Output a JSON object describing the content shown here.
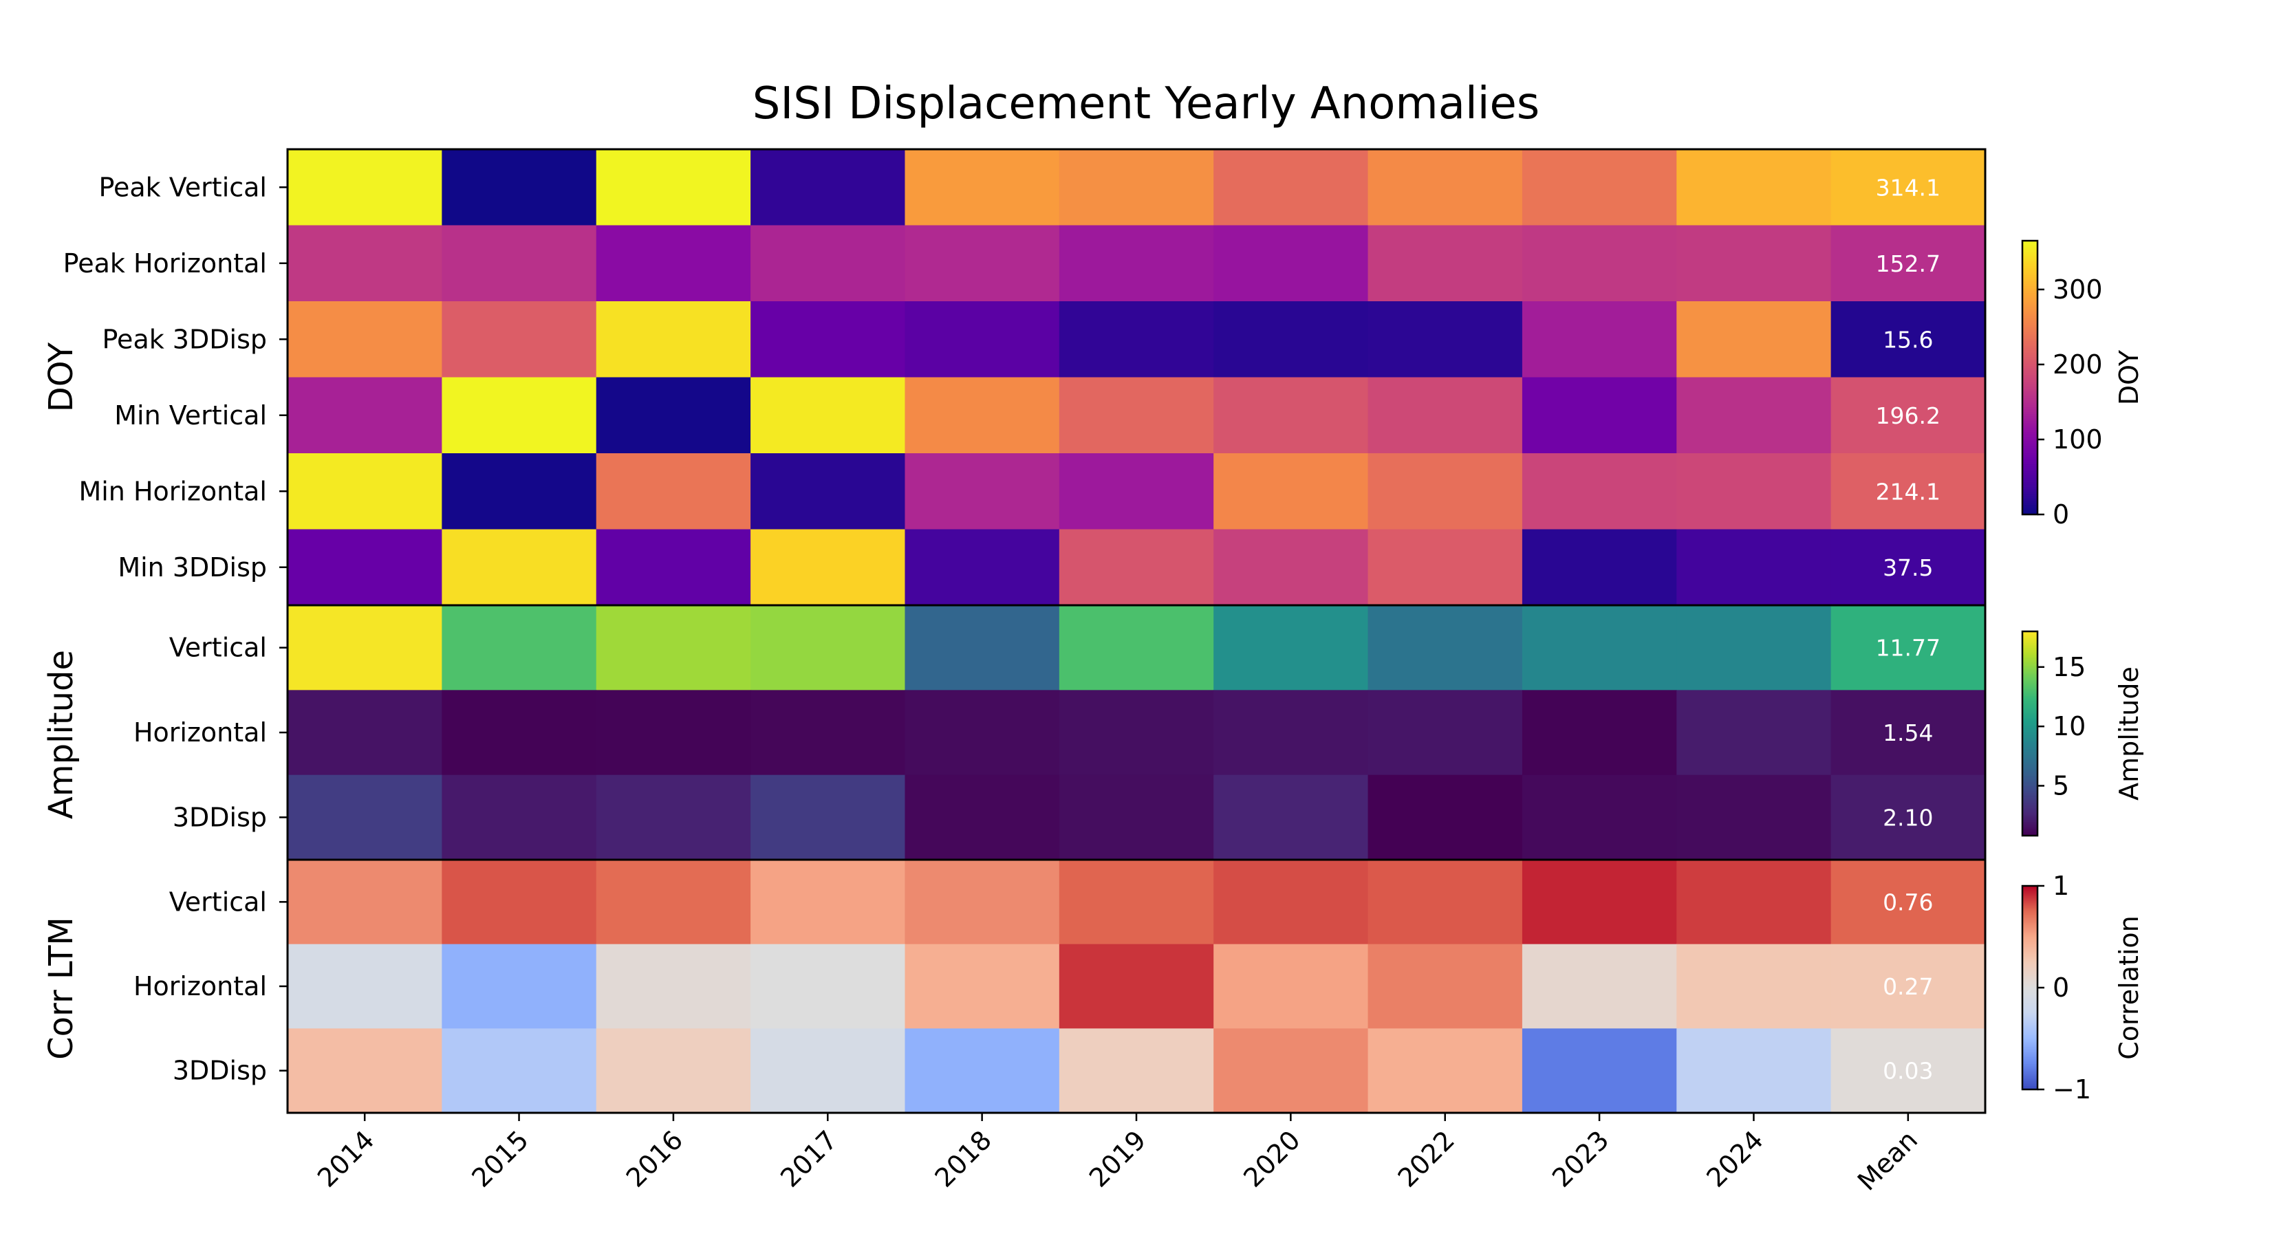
{
  "chart_data": {
    "type": "heatmap",
    "title": "SISI Displacement Yearly Anomalies",
    "columns": [
      "2014",
      "2015",
      "2016",
      "2017",
      "2018",
      "2019",
      "2020",
      "2022",
      "2023",
      "2024",
      "Mean"
    ],
    "groups": [
      {
        "name": "DOY",
        "colormap": "plasma",
        "vmin": 0,
        "vmax": 365,
        "colorbar_label": "DOY",
        "colorbar_ticks": [
          "0",
          "100",
          "200",
          "300"
        ],
        "rows": [
          {
            "label": "Peak Vertical",
            "values": [
              360,
              2,
              362,
              25,
              280,
              268,
              228,
              262,
              238,
              305,
              314.1
            ],
            "mean_label": "314.1"
          },
          {
            "label": "Peak Horizontal",
            "values": [
              165,
              155,
              105,
              140,
              145,
              125,
              118,
              170,
              165,
              168,
              152.7
            ],
            "mean_label": "152.7"
          },
          {
            "label": "Peak 3DDisp",
            "values": [
              265,
              210,
              345,
              70,
              60,
              25,
              20,
              22,
              130,
              270,
              15.6
            ],
            "mean_label": "15.6"
          },
          {
            "label": "Min Vertical",
            "values": [
              135,
              362,
              5,
              352,
              262,
              222,
              200,
              185,
              80,
              155,
              196.2
            ],
            "mean_label": "196.2"
          },
          {
            "label": "Min Horizontal",
            "values": [
              352,
              5,
              238,
              20,
              142,
              125,
              258,
              232,
              180,
              182,
              214.1
            ],
            "mean_label": "214.1"
          },
          {
            "label": "Min 3DDisp",
            "values": [
              70,
              342,
              65,
              332,
              40,
              200,
              175,
              208,
              20,
              38,
              37.5
            ],
            "mean_label": "37.5"
          }
        ]
      },
      {
        "name": "Amplitude",
        "colormap": "viridis",
        "vmin": 0.8,
        "vmax": 18,
        "colorbar_label": "Amplitude",
        "colorbar_ticks": [
          "5",
          "10",
          "15"
        ],
        "rows": [
          {
            "label": "Vertical",
            "values": [
              17.8,
              13.1,
              15.5,
              15.2,
              6.4,
              13.0,
              9.4,
              7.4,
              8.7,
              8.7,
              11.77
            ],
            "mean_label": "11.77"
          },
          {
            "label": "Horizontal",
            "values": [
              1.7,
              0.9,
              0.95,
              1.05,
              1.3,
              1.5,
              1.7,
              1.8,
              0.9,
              2.1,
              1.54
            ],
            "mean_label": "1.54"
          },
          {
            "label": "3DDisp",
            "values": [
              3.9,
              2.0,
              2.4,
              3.8,
              1.1,
              1.4,
              2.5,
              0.8,
              1.2,
              1.3,
              2.1
            ],
            "mean_label": "2.10"
          }
        ]
      },
      {
        "name": "Corr LTM",
        "colormap": "coolwarm",
        "vmin": -1,
        "vmax": 1,
        "colorbar_label": "Correlation",
        "colorbar_ticks": [
          "−1",
          "0",
          "1"
        ],
        "rows": [
          {
            "label": "Vertical",
            "values": [
              0.62,
              0.8,
              0.74,
              0.52,
              0.62,
              0.76,
              0.82,
              0.79,
              0.92,
              0.86,
              0.76
            ],
            "mean_label": "0.76"
          },
          {
            "label": "Horizontal",
            "values": [
              -0.1,
              -0.55,
              0.05,
              0.0,
              0.45,
              0.88,
              0.52,
              0.66,
              0.1,
              0.27,
              0.27
            ],
            "mean_label": "0.27"
          },
          {
            "label": "3DDisp",
            "values": [
              0.35,
              -0.38,
              0.2,
              -0.1,
              -0.55,
              0.2,
              0.62,
              0.45,
              -0.8,
              -0.3,
              0.03
            ],
            "mean_label": "0.03"
          }
        ]
      }
    ]
  }
}
